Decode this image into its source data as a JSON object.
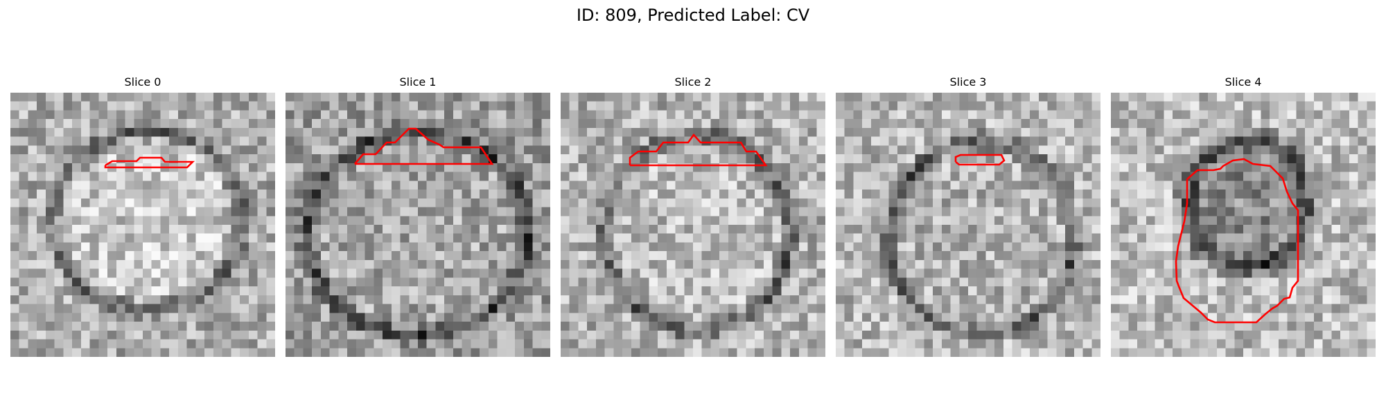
{
  "figure": {
    "title": "ID: 809, Predicted Label: CV"
  },
  "panels": [
    {
      "title": "Slice 0"
    },
    {
      "title": "Slice 1"
    },
    {
      "title": "Slice 2"
    },
    {
      "title": "Slice 3"
    },
    {
      "title": "Slice 4"
    }
  ],
  "colors": {
    "background": "#ffffff",
    "contour": "#ff0000"
  },
  "image": {
    "grid": 30,
    "colormap": "gray"
  }
}
